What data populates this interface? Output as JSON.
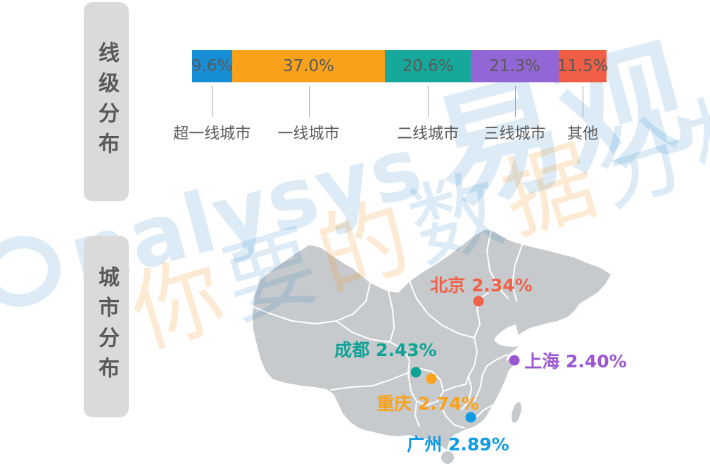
{
  "watermark": {
    "brand_en": "nalysys",
    "brand_cn": "易观",
    "tagline": "你要的数据分析",
    "tagline_chars": [
      {
        "char": "你",
        "tone": "orange"
      },
      {
        "char": "要",
        "tone": "blue"
      },
      {
        "char": "的",
        "tone": "orange"
      },
      {
        "char": "数",
        "tone": "blue"
      },
      {
        "char": "据",
        "tone": "orange"
      },
      {
        "char": "分",
        "tone": "blue"
      },
      {
        "char": "析",
        "tone": "blue"
      }
    ],
    "blue": "rgba(40,130,200,0.16)",
    "orange": "rgba(240,150,40,0.20)"
  },
  "sections": [
    {
      "id": "tier",
      "title": "线级分布"
    },
    {
      "id": "city",
      "title": "城市分布"
    }
  ],
  "chart_data": [
    {
      "type": "bar",
      "subtype": "stacked-horizontal",
      "title": "线级分布",
      "categories": [
        "超一线城市",
        "一线城市",
        "二线城市",
        "三线城市",
        "其他"
      ],
      "values": [
        9.6,
        37.0,
        20.6,
        21.3,
        11.5
      ],
      "value_labels": [
        "9.6%",
        "37.0%",
        "20.6%",
        "21.3%",
        "11.5%"
      ],
      "colors": [
        "#178fd6",
        "#f9a11a",
        "#16a99b",
        "#9266d4",
        "#ef5e45"
      ],
      "unit": "%",
      "xlim": [
        0,
        100
      ],
      "legend": "none",
      "grid": false
    },
    {
      "type": "scatter",
      "subtype": "china-map-markers",
      "title": "城市分布",
      "points": [
        {
          "city": "北京",
          "value": "2.34%",
          "color": "#f0614a",
          "dot_x": 680,
          "dot_y": 428,
          "label_x": 684,
          "label_y": 404
        },
        {
          "city": "成都",
          "value": "2.43%",
          "color": "#11a296",
          "dot_x": 591,
          "dot_y": 529,
          "label_x": 548,
          "label_y": 496
        },
        {
          "city": "上海",
          "value": "2.40%",
          "color": "#9b57d3",
          "dot_x": 731,
          "dot_y": 512,
          "label_x": 818,
          "label_y": 512
        },
        {
          "city": "重庆",
          "value": "2.74%",
          "color": "#f9a21a",
          "dot_x": 613,
          "dot_y": 538,
          "label_x": 608,
          "label_y": 572
        },
        {
          "city": "广州",
          "value": "2.89%",
          "color": "#0f9be0",
          "dot_x": 669,
          "dot_y": 593,
          "label_x": 651,
          "label_y": 630
        }
      ],
      "map_fill": "#c7cacc",
      "map_border": "#ffffff"
    }
  ]
}
